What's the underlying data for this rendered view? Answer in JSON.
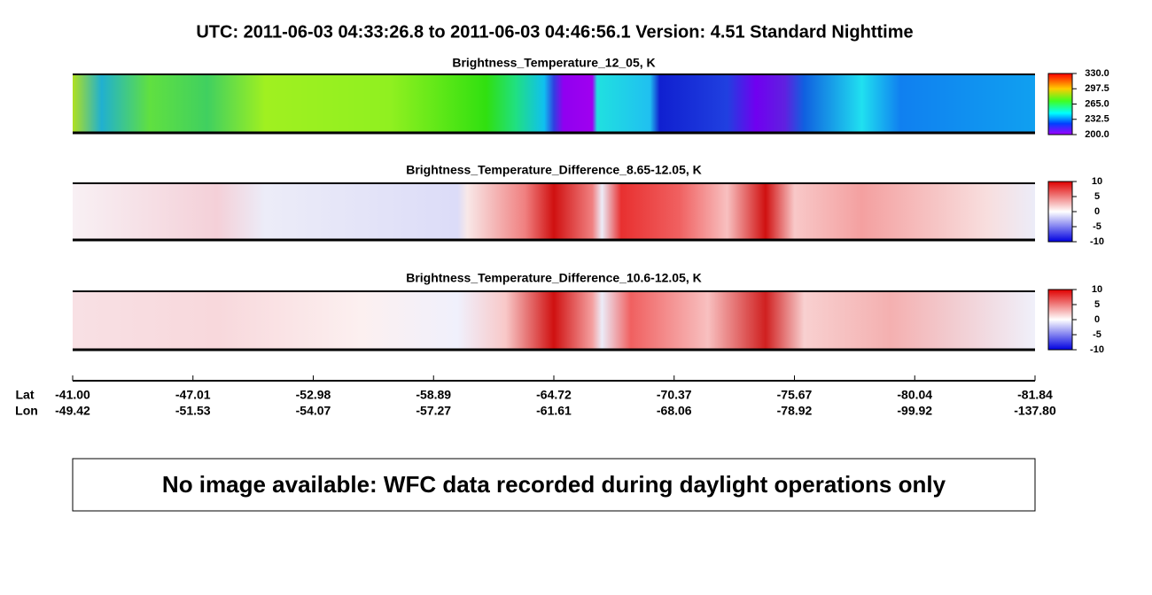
{
  "header": {
    "title": "UTC:  2011-06-03   04:33:26.8  to  2011-06-03   04:46:56.1    Version: 4.51  Standard Nighttime"
  },
  "panels": [
    {
      "title": "Brightness_Temperature_12_05, K",
      "colorbar_ticks": [
        {
          "value": 330,
          "label": "330.0"
        },
        {
          "value": 297.5,
          "label": "297.5"
        },
        {
          "value": 265,
          "label": "265.0"
        },
        {
          "value": 232.5,
          "label": "232.5"
        },
        {
          "value": 200,
          "label": "200.0"
        }
      ]
    },
    {
      "title": "Brightness_Temperature_Difference_8.65-12.05, K",
      "colorbar_ticks": [
        10,
        5,
        0,
        -5,
        -10
      ]
    },
    {
      "title": "Brightness_Temperature_Difference_10.6-12.05, K",
      "colorbar_ticks": [
        10,
        5,
        0,
        -5,
        -10
      ]
    }
  ],
  "axis": {
    "lat_label": "Lat",
    "lon_label": "Lon",
    "lat": [
      "-41.00",
      "-47.01",
      "-52.98",
      "-58.89",
      "-64.72",
      "-70.37",
      "-75.67",
      "-80.04",
      "-81.84"
    ],
    "lon": [
      "-49.42",
      "-51.53",
      "-54.07",
      "-57.27",
      "-61.61",
      "-68.06",
      "-78.92",
      "-99.92",
      "-137.80"
    ]
  },
  "message": "No image available: WFC data recorded during daylight operations only"
}
